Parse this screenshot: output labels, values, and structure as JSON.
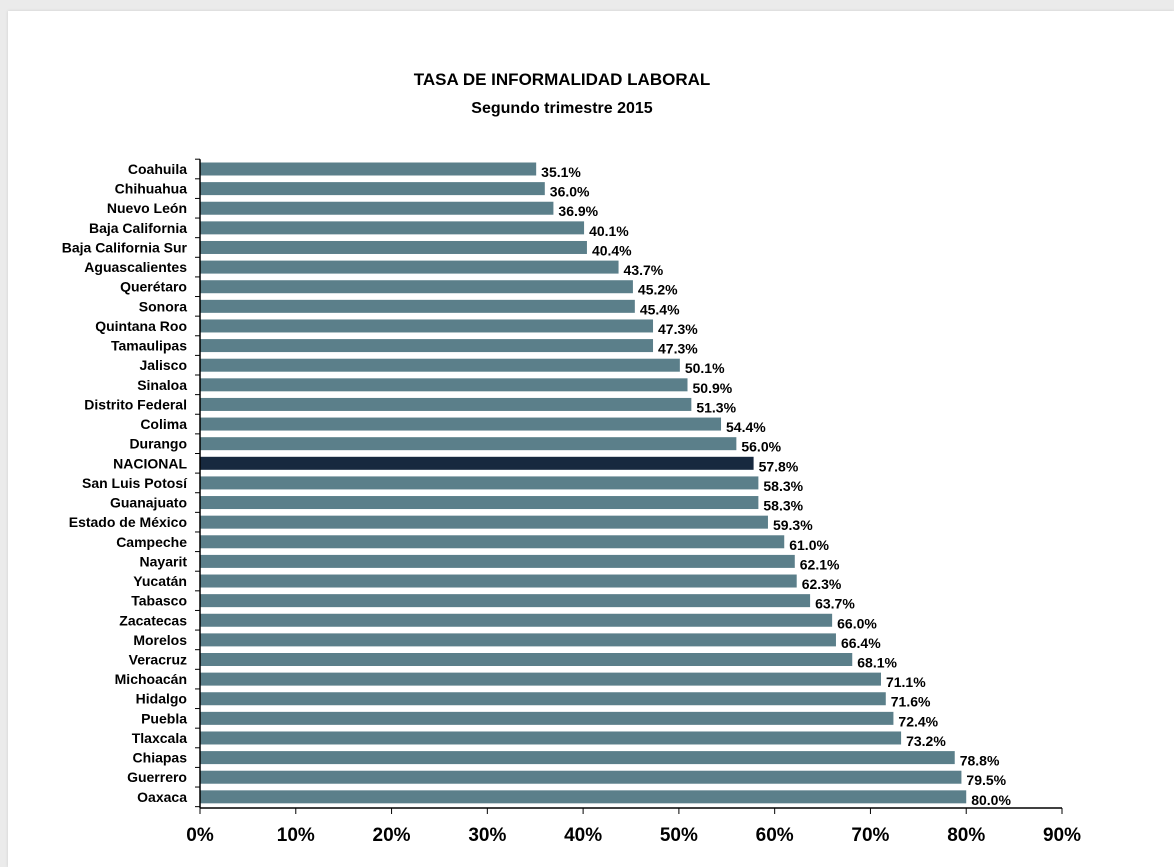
{
  "chart_data": {
    "type": "bar",
    "orientation": "horizontal",
    "title": "TASA  DE  INFORMALIDAD LABORAL",
    "subtitle": "Segundo trimestre 2015",
    "xlabel": "",
    "ylabel": "",
    "xlim": [
      0,
      90
    ],
    "x_ticks": [
      "0%",
      "10%",
      "20%",
      "30%",
      "40%",
      "50%",
      "60%",
      "70%",
      "80%",
      "90%"
    ],
    "value_suffix": "%",
    "grid": false,
    "legend": "none",
    "bar_color": "#5b7f8a",
    "highlight_color": "#17293f",
    "highlight_category": "NACIONAL",
    "categories": [
      "Coahuila",
      "Chihuahua",
      "Nuevo León",
      "Baja California",
      "Baja California Sur",
      "Aguascalientes",
      "Querétaro",
      "Sonora",
      "Quintana Roo",
      "Tamaulipas",
      "Jalisco",
      "Sinaloa",
      "Distrito Federal",
      "Colima",
      "Durango",
      "NACIONAL",
      "San Luis Potosí",
      "Guanajuato",
      "Estado de México",
      "Campeche",
      "Nayarit",
      "Yucatán",
      "Tabasco",
      "Zacatecas",
      "Morelos",
      "Veracruz",
      "Michoacán",
      "Hidalgo",
      "Puebla",
      "Tlaxcala",
      "Chiapas",
      "Guerrero",
      "Oaxaca"
    ],
    "values": [
      35.1,
      36.0,
      36.9,
      40.1,
      40.4,
      43.7,
      45.2,
      45.4,
      47.3,
      47.3,
      50.1,
      50.9,
      51.3,
      54.4,
      56.0,
      57.8,
      58.3,
      58.3,
      59.3,
      61.0,
      62.1,
      62.3,
      63.7,
      66.0,
      66.4,
      68.1,
      71.1,
      71.6,
      72.4,
      73.2,
      78.8,
      79.5,
      80.0
    ]
  }
}
